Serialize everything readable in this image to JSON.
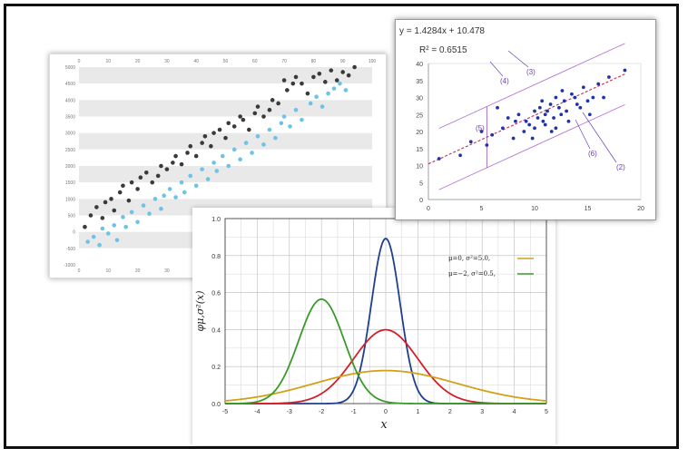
{
  "chart_data": [
    {
      "type": "scatter",
      "xlim": [
        0,
        100
      ],
      "ylim": [
        -1000,
        5000
      ],
      "x_ticks": [
        "0",
        "10",
        "20",
        "30",
        "40",
        "50",
        "60",
        "70",
        "80",
        "90",
        "100"
      ],
      "y_ticks": [
        "5000",
        "4500",
        "4000",
        "3500",
        "3000",
        "2500",
        "2000",
        "1500",
        "1000",
        "500",
        "0",
        "-500",
        "-1000"
      ],
      "grid": "horizontal alternating bands",
      "series": [
        {
          "color": "#3a3a3a",
          "x": [
            2,
            4,
            6,
            8,
            9,
            11,
            12,
            14,
            15,
            17,
            18,
            20,
            21,
            23,
            25,
            27,
            28,
            30,
            32,
            33,
            35,
            37,
            38,
            40,
            42,
            43,
            45,
            46,
            48,
            50,
            51,
            53,
            55,
            56,
            58,
            60,
            61,
            63,
            65,
            66,
            68,
            70,
            71,
            73,
            74,
            76,
            78,
            80,
            82,
            84,
            86,
            88,
            90,
            92,
            94
          ],
          "y": [
            150,
            500,
            750,
            420,
            900,
            1000,
            650,
            1200,
            1400,
            950,
            1500,
            1300,
            1650,
            1800,
            1500,
            1700,
            2000,
            1900,
            2100,
            2300,
            2050,
            2400,
            2600,
            2300,
            2700,
            2900,
            2600,
            3000,
            3100,
            2850,
            3300,
            3200,
            3500,
            3400,
            3100,
            3600,
            3800,
            3500,
            3700,
            4000,
            3900,
            4600,
            4300,
            4500,
            4700,
            4500,
            4200,
            4700,
            4800,
            4550,
            4900,
            4600,
            4850,
            4750,
            5000
          ]
        },
        {
          "color": "#6cc3e6",
          "x": [
            3,
            5,
            7,
            8,
            10,
            12,
            13,
            15,
            16,
            18,
            20,
            22,
            24,
            26,
            28,
            29,
            31,
            33,
            35,
            36,
            38,
            40,
            42,
            44,
            46,
            47,
            49,
            51,
            53,
            55,
            57,
            59,
            61,
            63,
            65,
            67,
            69,
            70,
            72,
            74,
            76,
            79,
            81,
            83,
            85,
            87,
            89,
            91
          ],
          "y": [
            -300,
            -150,
            -400,
            100,
            -50,
            200,
            -250,
            450,
            150,
            600,
            300,
            800,
            550,
            1000,
            700,
            1100,
            1300,
            1050,
            1500,
            1200,
            1700,
            1400,
            1900,
            1600,
            2100,
            1850,
            2300,
            2000,
            2500,
            2200,
            2700,
            2400,
            2900,
            2650,
            3100,
            2850,
            3300,
            3500,
            3200,
            3700,
            3400,
            3900,
            4100,
            3800,
            4200,
            4350,
            4500,
            4300
          ]
        }
      ]
    },
    {
      "type": "scatter",
      "equation": "y = 1.4284x + 10.478",
      "r2_label": "R² = 0.6515",
      "callouts": [
        "(1)",
        "(2)",
        "(3)",
        "(4)",
        "(5)",
        "(6)"
      ],
      "xlim": [
        0,
        20
      ],
      "ylim": [
        0,
        40
      ],
      "x_ticks": [
        "0",
        "5",
        "10",
        "15",
        "20"
      ],
      "y_ticks": [
        "40",
        "35",
        "30",
        "25",
        "20",
        "15",
        "10",
        "5",
        "0"
      ],
      "slope": 1.4284,
      "intercept": 10.478,
      "band": 9,
      "series": [
        {
          "color": "#2233aa",
          "x": [
            1,
            3,
            4,
            5,
            5.5,
            6,
            7,
            7.5,
            8,
            8.5,
            9,
            9.2,
            9.5,
            10,
            10,
            10.3,
            10.5,
            10.8,
            11,
            11,
            11.2,
            11.5,
            11.8,
            12,
            12,
            12.3,
            12.5,
            12.8,
            13,
            13.2,
            13.5,
            14,
            14.3,
            14.6,
            15,
            15.2,
            15.5,
            16,
            16.5,
            17,
            18.5,
            9.8,
            10.7,
            11.6,
            12.6,
            8.2,
            6.5,
            13.8
          ],
          "y": [
            12,
            13,
            17,
            20,
            16,
            19,
            21,
            24,
            18,
            25,
            20,
            23,
            22,
            26,
            21,
            24,
            27,
            23,
            25,
            22,
            26,
            28,
            24,
            30,
            21,
            27,
            25,
            29,
            26,
            23,
            31,
            28,
            27,
            33,
            29,
            25,
            30,
            34,
            30,
            36,
            38,
            18,
            29,
            20,
            32,
            23,
            27,
            30
          ]
        }
      ]
    },
    {
      "type": "line",
      "xlabel": "x",
      "ylabel": "φμ,σ²(x)",
      "xlim": [
        -5,
        5
      ],
      "ylim": [
        0,
        1.0
      ],
      "x_ticks": [
        "-5",
        "-4",
        "-3",
        "-2",
        "-1",
        "0",
        "1",
        "2",
        "3",
        "4",
        "5"
      ],
      "y_ticks": [
        "1.0",
        "0.8",
        "0.6",
        "0.4",
        "0.2",
        "0.0"
      ],
      "grid": true,
      "legend_position": "top-right",
      "series": [
        {
          "name": "",
          "mu": 0,
          "sigma2": 0.2,
          "color": "#1f3f8f"
        },
        {
          "name": "",
          "mu": 0,
          "sigma2": 1.0,
          "color": "#d1202a"
        },
        {
          "name": "μ=0,   σ²=5.0,",
          "mu": 0,
          "sigma2": 5.0,
          "color": "#d4a017"
        },
        {
          "name": "μ=−2, σ²=0.5,",
          "mu": -2,
          "sigma2": 0.5,
          "color": "#3a9a2a"
        }
      ]
    }
  ]
}
